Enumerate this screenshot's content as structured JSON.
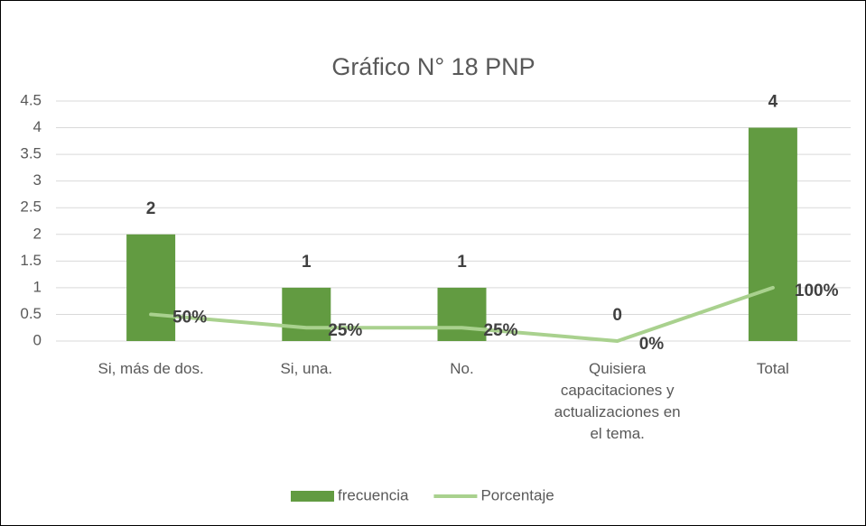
{
  "chart_data": {
    "type": "bar",
    "title": "Gráfico N° 18 PNP",
    "categories": [
      "Si, más de dos.",
      "Si, una.",
      "No.",
      "Quisiera capacitaciones y actualizaciones en el tema.",
      "Total"
    ],
    "series": [
      {
        "name": "frecuencia",
        "type": "bar",
        "color": "#629b41",
        "values": [
          2,
          1,
          1,
          0,
          4
        ]
      },
      {
        "name": "Porcentaje",
        "type": "line",
        "color": "#a9d18e",
        "values": [
          0.5,
          0.25,
          0.25,
          0,
          1
        ],
        "value_labels": [
          "50%",
          "25%",
          "25%",
          "0%",
          "100%"
        ]
      }
    ],
    "ylim": [
      0,
      4.5
    ],
    "yticks": [
      0,
      0.5,
      1,
      1.5,
      2,
      2.5,
      3,
      3.5,
      4,
      4.5
    ],
    "grid": true,
    "legend": "bottom"
  }
}
